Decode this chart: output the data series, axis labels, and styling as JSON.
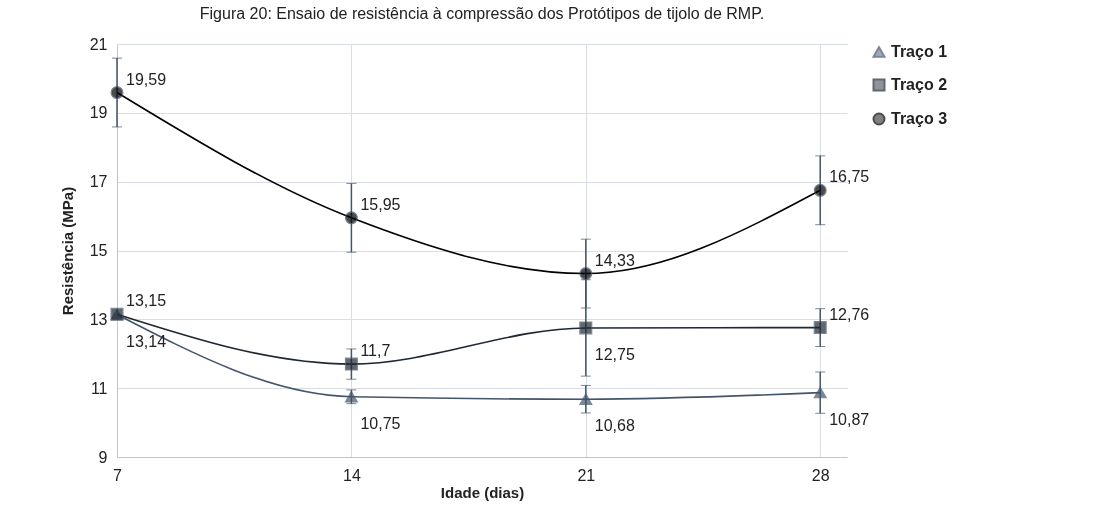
{
  "chart_data": {
    "type": "line",
    "title": "Figura 20: Ensaio de resistência à compressão dos Protótipos de tijolo de RMP.",
    "xlabel": "Idade (dias)",
    "ylabel": "Resistência (MPa)",
    "x": [
      7,
      14,
      21,
      28
    ],
    "series": [
      {
        "name": "Traço 1",
        "color": "#44546a",
        "marker": "triangle",
        "values": [
          13.14,
          10.75,
          10.68,
          10.87
        ],
        "value_labels": [
          "13,14",
          "10,75",
          "10,68",
          "10,87"
        ],
        "errors": [
          null,
          0.2,
          0.4,
          0.6
        ]
      },
      {
        "name": "Traço 2",
        "color": "#1f2733",
        "marker": "square",
        "values": [
          13.15,
          11.7,
          12.75,
          12.76
        ],
        "value_labels": [
          "13,15",
          "11,7",
          "12,75",
          "12,76"
        ],
        "errors": [
          null,
          0.44,
          1.4,
          0.55
        ]
      },
      {
        "name": "Traço 3",
        "color": "#000000",
        "marker": "circle",
        "values": [
          19.59,
          15.95,
          14.33,
          16.75
        ],
        "value_labels": [
          "19,59",
          "15,95",
          "14,33",
          "16,75"
        ],
        "errors": [
          1.0,
          1.0,
          1.0,
          1.0
        ]
      }
    ],
    "xlim": [
      7,
      28.8
    ],
    "xticks": [
      7,
      14,
      21,
      28
    ],
    "ylim": [
      9,
      21
    ],
    "yticks": [
      9,
      11,
      13,
      15,
      17,
      19,
      21
    ],
    "grid": true,
    "legend": "right"
  }
}
